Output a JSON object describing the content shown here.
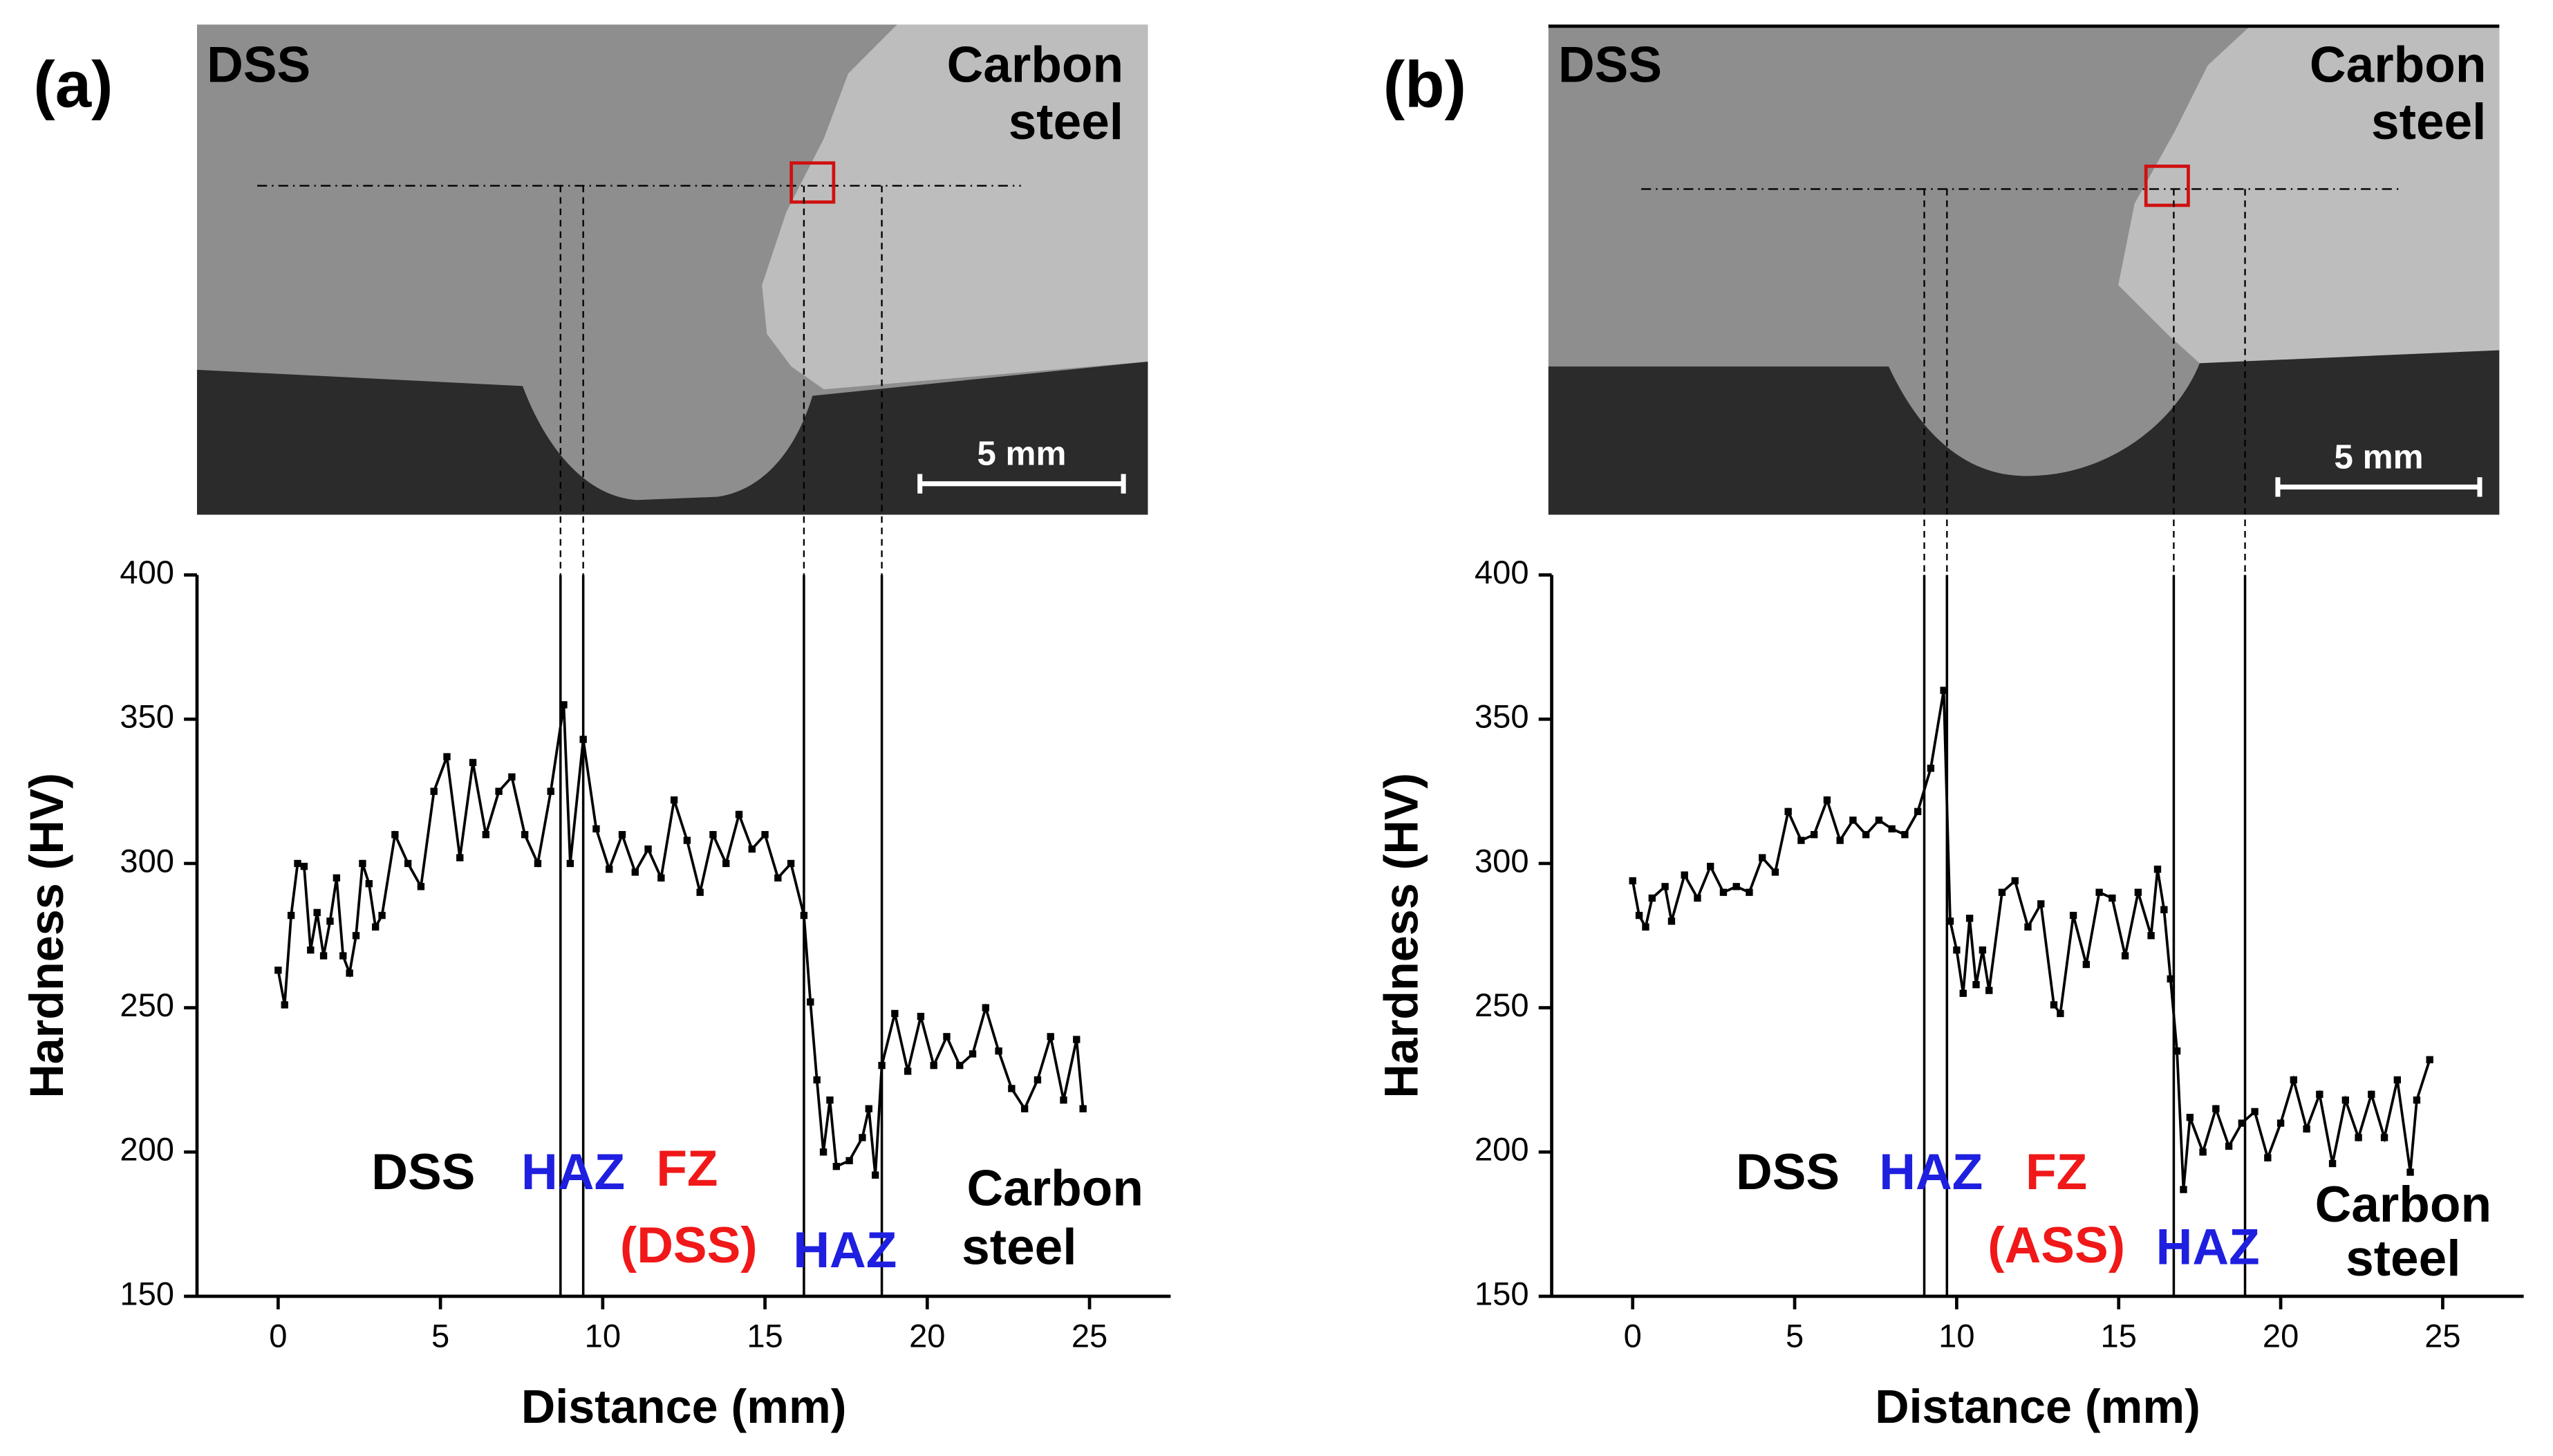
{
  "chart_data": [
    {
      "type": "line",
      "panel_label": "(a)",
      "micrograph_labels": [
        "DSS",
        "Carbon",
        "steel"
      ],
      "scale_bar": "5 mm",
      "xlabel": "Distance (mm)",
      "ylabel": "Hardness (HV)",
      "color": "#000000",
      "x": [
        0,
        0.2,
        0.4,
        0.6,
        0.8,
        1.0,
        1.2,
        1.4,
        1.6,
        1.8,
        2.0,
        2.2,
        2.4,
        2.6,
        2.8,
        3.0,
        3.2,
        3.6,
        4.0,
        4.4,
        4.8,
        5.2,
        5.6,
        6.0,
        6.4,
        6.8,
        7.2,
        7.6,
        8.0,
        8.4,
        8.8,
        9.0,
        9.4,
        9.8,
        10.2,
        10.6,
        11.0,
        11.4,
        11.8,
        12.2,
        12.6,
        13.0,
        13.4,
        13.8,
        14.2,
        14.6,
        15.0,
        15.4,
        15.8,
        16.2,
        16.4,
        16.6,
        16.8,
        17.0,
        17.2,
        17.6,
        18.0,
        18.2,
        18.4,
        18.6,
        19.0,
        19.4,
        19.8,
        20.2,
        20.6,
        21.0,
        21.4,
        21.8,
        22.2,
        22.6,
        23.0,
        23.4,
        23.8,
        24.2,
        24.6,
        24.8
      ],
      "values": [
        263,
        251,
        282,
        300,
        299,
        270,
        283,
        268,
        280,
        295,
        268,
        262,
        275,
        300,
        293,
        278,
        282,
        310,
        300,
        292,
        325,
        337,
        302,
        335,
        310,
        325,
        330,
        310,
        300,
        325,
        355,
        300,
        343,
        312,
        298,
        310,
        297,
        305,
        295,
        322,
        308,
        290,
        310,
        300,
        317,
        305,
        310,
        295,
        300,
        282,
        252,
        225,
        200,
        218,
        195,
        197,
        205,
        215,
        192,
        230,
        248,
        228,
        247,
        230,
        240,
        230,
        234,
        250,
        235,
        222,
        215,
        225,
        240,
        218,
        239,
        215
      ],
      "zone_boundaries": [
        8.7,
        9.4,
        16.2,
        18.6
      ],
      "annotations": [
        {
          "text": "DSS",
          "color": "#000000"
        },
        {
          "text": "HAZ",
          "color": "#1f1fe0"
        },
        {
          "text": "FZ",
          "color": "#f01818"
        },
        {
          "text": "(DSS)",
          "color": "#f01818"
        },
        {
          "text": "HAZ",
          "color": "#1f1fe0"
        },
        {
          "text": "Carbon",
          "color": "#000000"
        },
        {
          "text": "steel",
          "color": "#000000"
        }
      ],
      "xlim": [
        -2.5,
        27.5
      ],
      "xticks": [
        0,
        5,
        10,
        15,
        20,
        25
      ],
      "ylim": [
        150,
        400
      ],
      "yticks": [
        150,
        200,
        250,
        300,
        350,
        400
      ]
    },
    {
      "type": "line",
      "panel_label": "(b)",
      "micrograph_labels": [
        "DSS",
        "Carbon",
        "steel"
      ],
      "scale_bar": "5 mm",
      "xlabel": "Distance (mm)",
      "ylabel": "Hardness (HV)",
      "color": "#000000",
      "x": [
        0,
        0.2,
        0.4,
        0.6,
        1.0,
        1.2,
        1.6,
        2.0,
        2.4,
        2.8,
        3.2,
        3.6,
        4.0,
        4.4,
        4.8,
        5.2,
        5.6,
        6.0,
        6.4,
        6.8,
        7.2,
        7.6,
        8.0,
        8.4,
        8.8,
        9.2,
        9.6,
        9.8,
        10.0,
        10.2,
        10.4,
        10.6,
        10.8,
        11.0,
        11.4,
        11.8,
        12.2,
        12.6,
        13.0,
        13.2,
        13.6,
        14.0,
        14.4,
        14.8,
        15.2,
        15.6,
        16.0,
        16.2,
        16.4,
        16.6,
        16.8,
        17.0,
        17.2,
        17.6,
        18.0,
        18.4,
        18.8,
        19.2,
        19.6,
        20.0,
        20.4,
        20.8,
        21.2,
        21.6,
        22.0,
        22.4,
        22.8,
        23.2,
        23.6,
        24.0,
        24.2,
        24.6
      ],
      "values": [
        294,
        282,
        278,
        288,
        292,
        280,
        296,
        288,
        299,
        290,
        292,
        290,
        302,
        297,
        318,
        308,
        310,
        322,
        308,
        315,
        310,
        315,
        312,
        310,
        318,
        333,
        360,
        280,
        270,
        255,
        281,
        258,
        270,
        256,
        290,
        294,
        278,
        286,
        251,
        248,
        282,
        265,
        290,
        288,
        268,
        290,
        275,
        298,
        284,
        260,
        235,
        187,
        212,
        200,
        215,
        202,
        210,
        214,
        198,
        210,
        225,
        208,
        220,
        196,
        218,
        205,
        220,
        205,
        225,
        193,
        218,
        232
      ],
      "zone_boundaries": [
        9.0,
        9.7,
        16.7,
        18.9
      ],
      "annotations": [
        {
          "text": "DSS",
          "color": "#000000"
        },
        {
          "text": "HAZ",
          "color": "#1f1fe0"
        },
        {
          "text": "FZ",
          "color": "#f01818"
        },
        {
          "text": "(ASS)",
          "color": "#f01818"
        },
        {
          "text": "HAZ",
          "color": "#1f1fe0"
        },
        {
          "text": "Carbon",
          "color": "#000000"
        },
        {
          "text": "steel",
          "color": "#000000"
        }
      ],
      "xlim": [
        -2.5,
        27.5
      ],
      "xticks": [
        0,
        5,
        10,
        15,
        20,
        25
      ],
      "ylim": [
        150,
        400
      ],
      "yticks": [
        150,
        200,
        250,
        300,
        350,
        400
      ]
    }
  ]
}
